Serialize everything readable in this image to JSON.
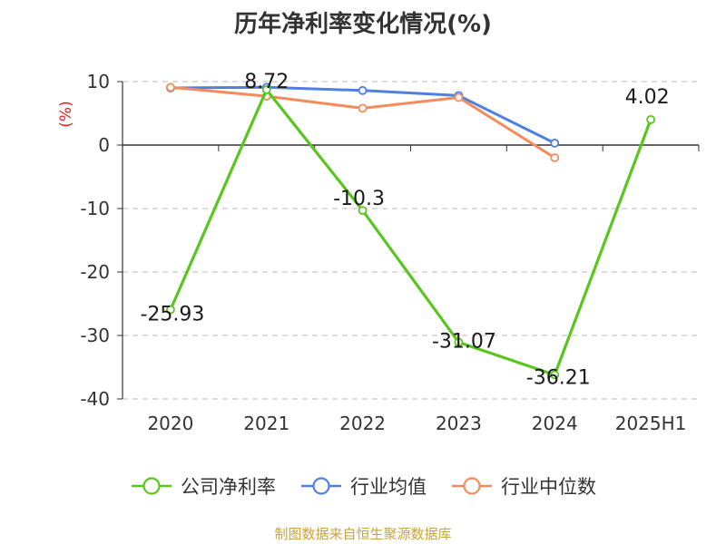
{
  "chart_data": {
    "type": "line",
    "title": "历年净利率变化情况(%)",
    "ylabel": "(%)",
    "categories": [
      "2020",
      "2021",
      "2022",
      "2023",
      "2024",
      "2025H1"
    ],
    "ylim": [
      -40,
      10
    ],
    "yticks": [
      10,
      0,
      -10,
      -20,
      -30,
      -40
    ],
    "grid": true,
    "legend_position": "bottom",
    "series": [
      {
        "name": "公司净利率",
        "color": "#5ac51e",
        "values": [
          -25.93,
          8.72,
          -10.3,
          -31.07,
          -36.21,
          4.02
        ],
        "labels": [
          "-25.93",
          "8.72",
          "-10.3",
          "-31.07",
          "-36.21",
          "4.02"
        ]
      },
      {
        "name": "行业均值",
        "color": "#4f7fe0",
        "values": [
          9.0,
          9.1,
          8.6,
          7.8,
          0.3,
          null
        ]
      },
      {
        "name": "行业中位数",
        "color": "#f48b5b",
        "values": [
          9.1,
          7.7,
          5.8,
          7.5,
          -2.0,
          null
        ]
      }
    ]
  },
  "source": "制图数据来自恒生聚源数据库"
}
